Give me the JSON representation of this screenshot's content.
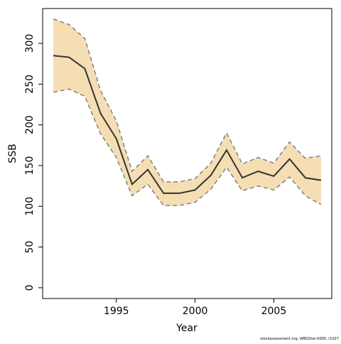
{
  "chart_data": {
    "type": "line",
    "xlabel": "Year",
    "ylabel": "SSB",
    "footnote": "stockassessment.org, WBSSher-X000, r1027",
    "x": [
      1991,
      1992,
      1993,
      1994,
      1995,
      1996,
      1997,
      1998,
      1999,
      2000,
      2001,
      2002,
      2003,
      2004,
      2005,
      2006,
      2007,
      2008
    ],
    "values": [
      285,
      283,
      269,
      214,
      183,
      127,
      145,
      116,
      116,
      120,
      138,
      169,
      135,
      143,
      137,
      158,
      135,
      132
    ],
    "upper": [
      330,
      323,
      306,
      242,
      205,
      143,
      162,
      130,
      130,
      134,
      153,
      190,
      152,
      160,
      153,
      179,
      159,
      162
    ],
    "lower": [
      240,
      244,
      235,
      189,
      160,
      113,
      127,
      101,
      101,
      105,
      121,
      148,
      119,
      125,
      120,
      136,
      113,
      102
    ],
    "color": "#333333",
    "band_color": "#f5deb3",
    "bound_color": "#808080",
    "xlim": [
      1990.32,
      2008.68
    ],
    "ylim": [
      -13.2,
      342.8
    ],
    "xticks": [
      1995,
      2000,
      2005
    ],
    "yticks": [
      0,
      50,
      100,
      150,
      200,
      250,
      300
    ]
  }
}
